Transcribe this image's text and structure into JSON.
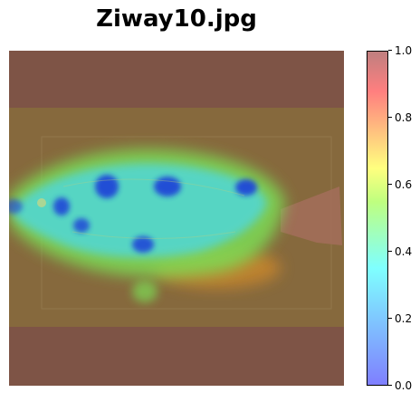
{
  "title": "Ziway10.jpg",
  "colorbar": {
    "colormap": "jet",
    "alpha": 0.5,
    "range": [
      0.0,
      1.0
    ],
    "ticks": [
      "0.0",
      "0.2",
      "0.4",
      "0.6",
      "0.8",
      "1.0"
    ]
  },
  "colors": {
    "background_overlay": "#7e5446",
    "photo_base": "#8a6a3c",
    "heat_green": "#7ddc54",
    "heat_cyan": "#4ed8e0",
    "heat_blue": "#1a3fd8",
    "heat_orange": "#d8902c"
  }
}
